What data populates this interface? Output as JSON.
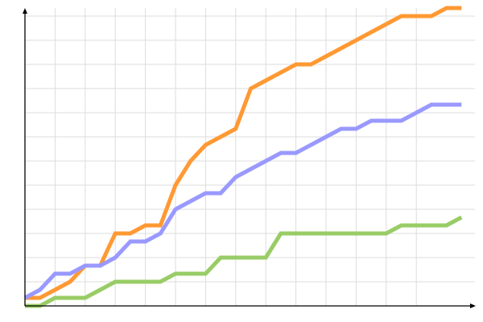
{
  "chart_data": {
    "type": "line",
    "title": "",
    "xlabel": "",
    "ylabel": "",
    "x": [
      0,
      1,
      2,
      3,
      4,
      5,
      6,
      7,
      8,
      9,
      10,
      11,
      12,
      13,
      14,
      15,
      16,
      17,
      18,
      19,
      20,
      21,
      22,
      23,
      24,
      25,
      26,
      27,
      28,
      29
    ],
    "xlim": [
      0,
      30
    ],
    "ylim": [
      0,
      37
    ],
    "x_grid_step": 2,
    "y_grid_step": 3,
    "grid": true,
    "legend": "none",
    "series": [
      {
        "color": "#FF9933",
        "values": [
          1,
          1,
          2,
          3,
          5,
          5,
          9,
          9,
          10,
          10,
          15,
          18,
          20,
          21,
          22,
          27,
          28,
          29,
          30,
          30,
          31,
          32,
          33,
          34,
          35,
          36,
          36,
          36,
          37,
          37
        ]
      },
      {
        "color": "#9999FF",
        "values": [
          1,
          2,
          4,
          4,
          5,
          5,
          6,
          8,
          8,
          9,
          12,
          13,
          14,
          14,
          16,
          17,
          18,
          19,
          19,
          20,
          21,
          22,
          22,
          23,
          23,
          23,
          24,
          25,
          25,
          25
        ]
      },
      {
        "color": "#99CC66",
        "values": [
          0,
          0,
          1,
          1,
          1,
          2,
          3,
          3,
          3,
          3,
          4,
          4,
          4,
          6,
          6,
          6,
          6,
          9,
          9,
          9,
          9,
          9,
          9,
          9,
          9,
          10,
          10,
          10,
          10,
          11
        ]
      }
    ]
  }
}
